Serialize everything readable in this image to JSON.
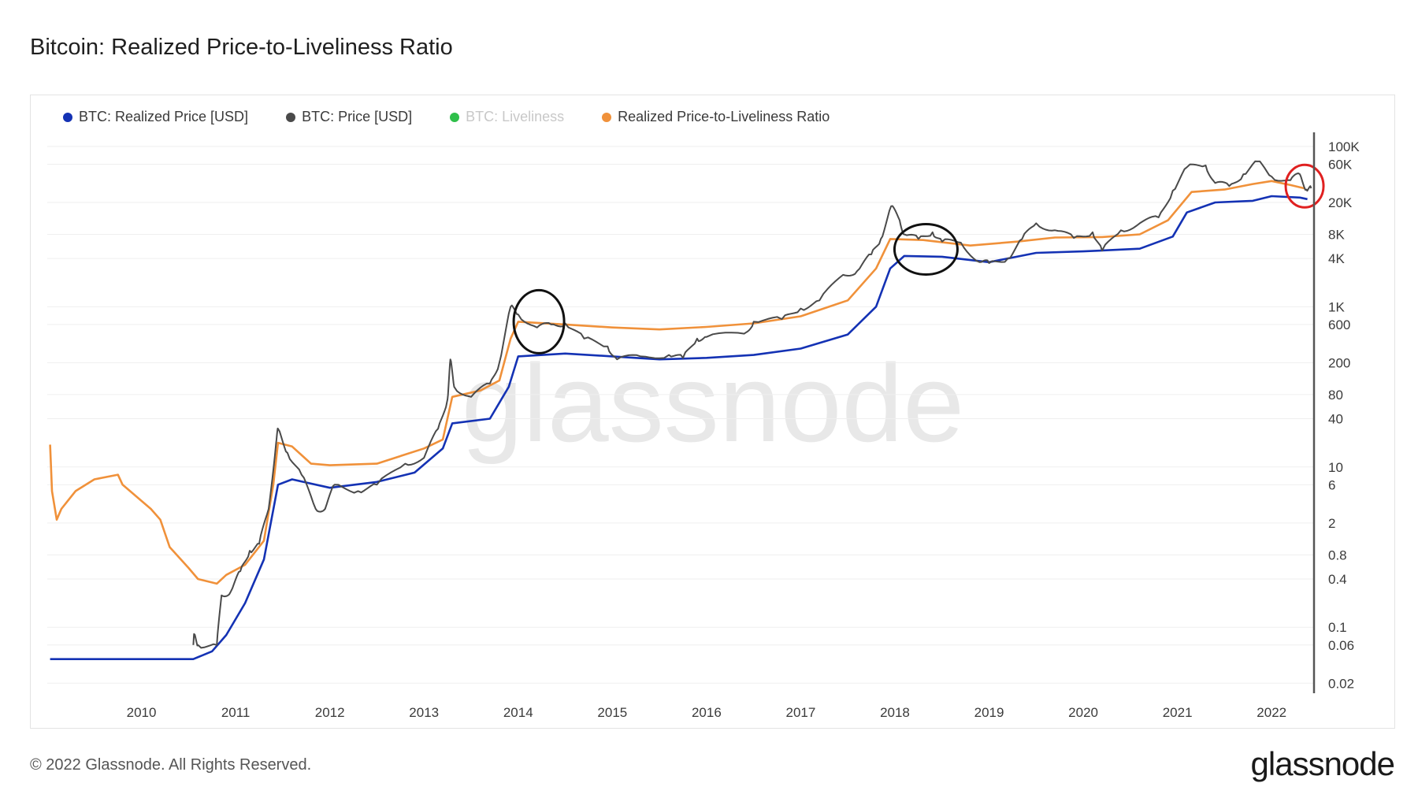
{
  "title": "Bitcoin: Realized Price-to-Liveliness Ratio",
  "footer": {
    "copyright": "© 2022 Glassnode. All Rights Reserved.",
    "logo": "glassnode"
  },
  "watermark": "glassnode",
  "legend": [
    {
      "label": "BTC: Realized Price [USD]",
      "color": "#1432b4",
      "faded": false
    },
    {
      "label": "BTC: Price [USD]",
      "color": "#4a4a4a",
      "faded": false
    },
    {
      "label": "BTC: Liveliness",
      "color": "#2fbf4a",
      "faded": true
    },
    {
      "label": "Realized Price-to-Liveliness Ratio",
      "color": "#f0913a",
      "faded": false
    }
  ],
  "chart_data": {
    "type": "line",
    "yscale": "log",
    "xlim": [
      2009.0,
      2022.45
    ],
    "ylim": [
      0.015,
      150000
    ],
    "x_ticks": [
      2010,
      2011,
      2012,
      2013,
      2014,
      2015,
      2016,
      2017,
      2018,
      2019,
      2020,
      2021,
      2022
    ],
    "x_tick_labels": [
      "2010",
      "2011",
      "2012",
      "2013",
      "2014",
      "2015",
      "2016",
      "2017",
      "2018",
      "2019",
      "2020",
      "2021",
      "2022"
    ],
    "y_ticks": [
      100000,
      60000,
      20000,
      8000,
      4000,
      1000,
      600,
      200,
      80,
      40,
      10,
      6,
      2,
      0.8,
      0.4,
      0.1,
      0.06,
      0.02
    ],
    "y_tick_labels": [
      "100K",
      "60K",
      "20K",
      "8K",
      "4K",
      "1K",
      "600",
      "200",
      "80",
      "40",
      "10",
      "6",
      "2",
      "0.8",
      "0.4",
      "0.1",
      "0.06",
      "0.02"
    ],
    "series": [
      {
        "name": "Realized Price-to-Liveliness Ratio",
        "color": "#f0913a",
        "points": [
          [
            2009.03,
            19
          ],
          [
            2009.05,
            5
          ],
          [
            2009.1,
            2.2
          ],
          [
            2009.15,
            3
          ],
          [
            2009.3,
            5
          ],
          [
            2009.5,
            7
          ],
          [
            2009.75,
            8
          ],
          [
            2009.8,
            6
          ],
          [
            2010.1,
            3
          ],
          [
            2010.2,
            2.2
          ],
          [
            2010.3,
            1
          ],
          [
            2010.5,
            0.55
          ],
          [
            2010.6,
            0.4
          ],
          [
            2010.8,
            0.35
          ],
          [
            2010.9,
            0.45
          ],
          [
            2011.1,
            0.6
          ],
          [
            2011.3,
            1.2
          ],
          [
            2011.4,
            6
          ],
          [
            2011.45,
            20
          ],
          [
            2011.6,
            18
          ],
          [
            2011.8,
            11
          ],
          [
            2012.0,
            10.5
          ],
          [
            2012.5,
            11
          ],
          [
            2013.0,
            17
          ],
          [
            2013.2,
            22
          ],
          [
            2013.3,
            75
          ],
          [
            2013.6,
            90
          ],
          [
            2013.8,
            120
          ],
          [
            2013.92,
            400
          ],
          [
            2014.0,
            650
          ],
          [
            2014.5,
            600
          ],
          [
            2015.0,
            550
          ],
          [
            2015.5,
            520
          ],
          [
            2016.0,
            560
          ],
          [
            2016.5,
            620
          ],
          [
            2017.0,
            760
          ],
          [
            2017.5,
            1200
          ],
          [
            2017.8,
            3000
          ],
          [
            2017.95,
            7000
          ],
          [
            2018.3,
            6800
          ],
          [
            2018.8,
            5800
          ],
          [
            2019.3,
            6500
          ],
          [
            2019.7,
            7300
          ],
          [
            2020.2,
            7400
          ],
          [
            2020.6,
            8000
          ],
          [
            2020.9,
            12000
          ],
          [
            2021.15,
            27000
          ],
          [
            2021.5,
            29000
          ],
          [
            2021.8,
            34000
          ],
          [
            2022.0,
            37000
          ],
          [
            2022.2,
            33000
          ],
          [
            2022.35,
            30000
          ]
        ]
      },
      {
        "name": "BTC: Realized Price [USD]",
        "color": "#1432b4",
        "points": [
          [
            2009.03,
            0.04
          ],
          [
            2010.55,
            0.04
          ],
          [
            2010.75,
            0.05
          ],
          [
            2010.9,
            0.08
          ],
          [
            2011.1,
            0.2
          ],
          [
            2011.3,
            0.7
          ],
          [
            2011.45,
            6
          ],
          [
            2011.6,
            7
          ],
          [
            2012.0,
            5.5
          ],
          [
            2012.5,
            6.5
          ],
          [
            2012.9,
            8.5
          ],
          [
            2013.2,
            17
          ],
          [
            2013.3,
            35
          ],
          [
            2013.7,
            40
          ],
          [
            2013.9,
            100
          ],
          [
            2014.0,
            240
          ],
          [
            2014.5,
            260
          ],
          [
            2015.0,
            240
          ],
          [
            2015.5,
            220
          ],
          [
            2016.0,
            230
          ],
          [
            2016.5,
            250
          ],
          [
            2017.0,
            300
          ],
          [
            2017.5,
            450
          ],
          [
            2017.8,
            1000
          ],
          [
            2017.95,
            3000
          ],
          [
            2018.1,
            4300
          ],
          [
            2018.5,
            4200
          ],
          [
            2019.0,
            3600
          ],
          [
            2019.5,
            4700
          ],
          [
            2020.0,
            4900
          ],
          [
            2020.6,
            5300
          ],
          [
            2020.95,
            7500
          ],
          [
            2021.1,
            15000
          ],
          [
            2021.4,
            20000
          ],
          [
            2021.8,
            21000
          ],
          [
            2022.0,
            24000
          ],
          [
            2022.3,
            23000
          ],
          [
            2022.38,
            22000
          ]
        ]
      },
      {
        "name": "BTC: Price [USD]",
        "color": "#4a4a4a",
        "points": [
          [
            2010.55,
            0.06
          ],
          [
            2010.56,
            0.08
          ],
          [
            2010.6,
            0.06
          ],
          [
            2010.8,
            0.06
          ],
          [
            2010.85,
            0.25
          ],
          [
            2010.95,
            0.28
          ],
          [
            2011.05,
            0.5
          ],
          [
            2011.15,
            0.9
          ],
          [
            2011.25,
            1.1
          ],
          [
            2011.35,
            3
          ],
          [
            2011.43,
            20
          ],
          [
            2011.45,
            30
          ],
          [
            2011.55,
            15
          ],
          [
            2011.7,
            8
          ],
          [
            2011.85,
            3
          ],
          [
            2011.95,
            3
          ],
          [
            2012.05,
            6
          ],
          [
            2012.3,
            5
          ],
          [
            2012.5,
            6
          ],
          [
            2012.8,
            11
          ],
          [
            2013.0,
            13
          ],
          [
            2013.15,
            30
          ],
          [
            2013.25,
            70
          ],
          [
            2013.28,
            220
          ],
          [
            2013.32,
            100
          ],
          [
            2013.5,
            75
          ],
          [
            2013.7,
            110
          ],
          [
            2013.8,
            200
          ],
          [
            2013.92,
            1000
          ],
          [
            2014.0,
            800
          ],
          [
            2014.2,
            550
          ],
          [
            2014.35,
            600
          ],
          [
            2014.5,
            620
          ],
          [
            2014.7,
            400
          ],
          [
            2014.95,
            320
          ],
          [
            2015.05,
            220
          ],
          [
            2015.3,
            240
          ],
          [
            2015.6,
            250
          ],
          [
            2015.75,
            230
          ],
          [
            2015.9,
            400
          ],
          [
            2016.0,
            420
          ],
          [
            2016.4,
            460
          ],
          [
            2016.5,
            650
          ],
          [
            2016.8,
            700
          ],
          [
            2017.0,
            950
          ],
          [
            2017.2,
            1200
          ],
          [
            2017.45,
            2500
          ],
          [
            2017.6,
            2800
          ],
          [
            2017.75,
            4500
          ],
          [
            2017.85,
            7000
          ],
          [
            2017.96,
            18000
          ],
          [
            2018.05,
            12000
          ],
          [
            2018.1,
            8000
          ],
          [
            2018.25,
            7000
          ],
          [
            2018.4,
            8500
          ],
          [
            2018.5,
            6500
          ],
          [
            2018.7,
            6300
          ],
          [
            2018.9,
            3600
          ],
          [
            2019.0,
            3500
          ],
          [
            2019.2,
            4000
          ],
          [
            2019.35,
            7000
          ],
          [
            2019.5,
            11000
          ],
          [
            2019.7,
            9000
          ],
          [
            2019.9,
            7200
          ],
          [
            2020.1,
            8500
          ],
          [
            2020.2,
            5000
          ],
          [
            2020.4,
            9000
          ],
          [
            2020.6,
            11000
          ],
          [
            2020.8,
            13000
          ],
          [
            2020.95,
            28000
          ],
          [
            2021.1,
            55000
          ],
          [
            2021.3,
            58000
          ],
          [
            2021.4,
            35000
          ],
          [
            2021.55,
            32000
          ],
          [
            2021.7,
            45000
          ],
          [
            2021.85,
            65000
          ],
          [
            2022.0,
            42000
          ],
          [
            2022.2,
            38000
          ],
          [
            2022.3,
            45000
          ],
          [
            2022.37,
            29000
          ],
          [
            2022.42,
            30000
          ]
        ]
      }
    ],
    "annotations": [
      {
        "shape": "ellipse",
        "color": "#111111",
        "x": 2014.22,
        "y": 650
      },
      {
        "shape": "ellipse",
        "color": "#111111",
        "x": 2018.33,
        "y": 5200
      },
      {
        "shape": "ellipse",
        "color": "#e02020",
        "x": 2022.35,
        "y": 32000
      }
    ]
  }
}
